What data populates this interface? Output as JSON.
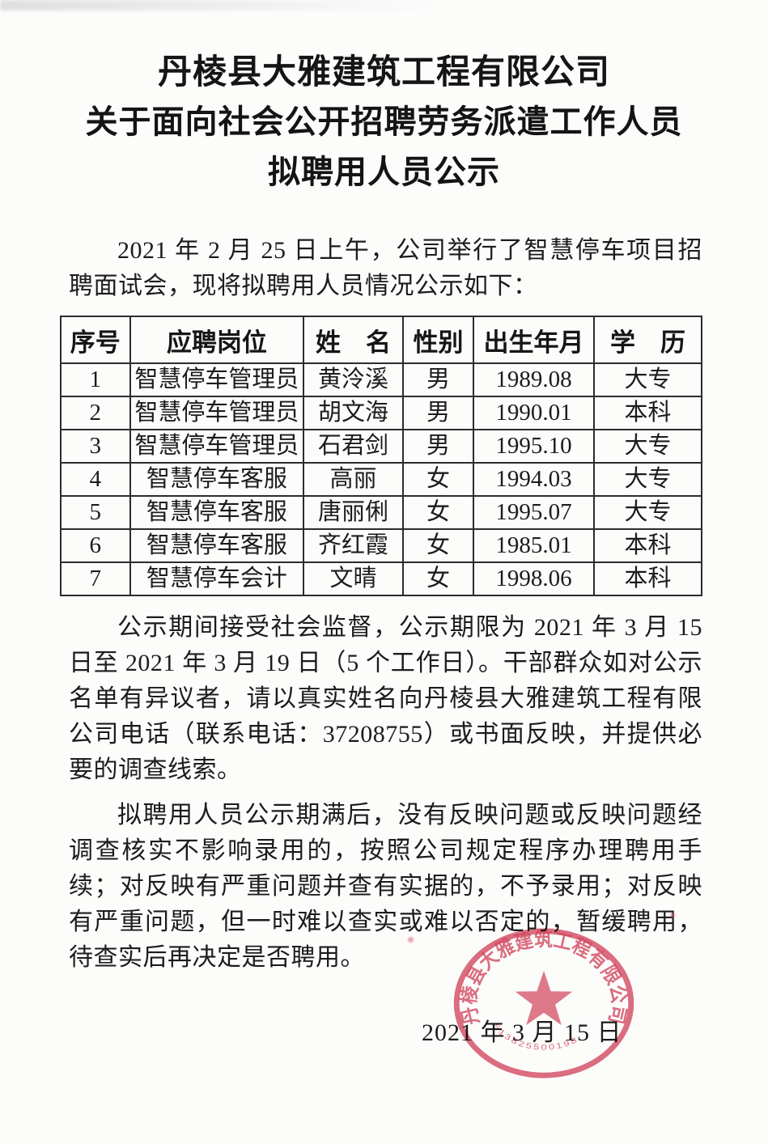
{
  "header": {
    "company": "丹棱县大雅建筑工程有限公司",
    "title_line1": "关于面向社会公开招聘劳务派遣工作人员",
    "title_line2": "拟聘用人员公示"
  },
  "body": {
    "intro": "2021 年 2 月 25 日上午，公司举行了智慧停车项目招聘面试会，现将拟聘用人员情况公示如下：",
    "para_supervision": "公示期间接受社会监督，公示期限为 2021 年 3 月 15 日至 2021 年 3 月 19 日（5 个工作日）。干部群众如对公示名单有异议者，请以真实姓名向丹棱县大雅建筑工程有限公司电话（联系电话：37208755）或书面反映，并提供必要的调查线索。",
    "para_procedure": "拟聘用人员公示期满后，没有反映问题或反映问题经调查核实不影响录用的，按照公司规定程序办理聘用手续；对反映有严重问题并查有实据的，不予录用；对反映有严重问题，但一时难以查实或难以否定的，暂缓聘用，待查实后再决定是否聘用。"
  },
  "table": {
    "headers": [
      "序号",
      "应聘岗位",
      "姓　名",
      "性别",
      "出生年月",
      "学　历"
    ],
    "rows": [
      [
        "1",
        "智慧停车管理员",
        "黄泠溪",
        "男",
        "1989.08",
        "大专"
      ],
      [
        "2",
        "智慧停车管理员",
        "胡文海",
        "男",
        "1990.01",
        "本科"
      ],
      [
        "3",
        "智慧停车管理员",
        "石君剑",
        "男",
        "1995.10",
        "大专"
      ],
      [
        "4",
        "智慧停车客服",
        "高丽",
        "女",
        "1994.03",
        "大专"
      ],
      [
        "5",
        "智慧停车客服",
        "唐丽俐",
        "女",
        "1995.07",
        "大专"
      ],
      [
        "6",
        "智慧停车客服",
        "齐红霞",
        "女",
        "1985.01",
        "本科"
      ],
      [
        "7",
        "智慧停车会计",
        "文晴",
        "女",
        "1998.06",
        "本科"
      ]
    ]
  },
  "footer": {
    "date": "2021 年 3 月 15 日"
  },
  "seal": {
    "ring_text": "丹棱县大雅建筑工程有限公司",
    "serial_number": "513825500198",
    "color": "#d54a62"
  }
}
